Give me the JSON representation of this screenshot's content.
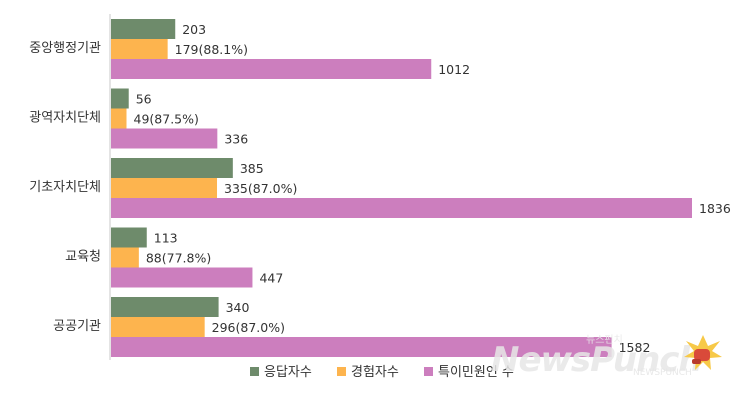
{
  "chart_data": {
    "type": "bar",
    "orientation": "horizontal",
    "categories": [
      "중앙행정기관",
      "광역자치단체",
      "기초자치단체",
      "교육청",
      "공공기관"
    ],
    "series": [
      {
        "name": "응답자수",
        "color": "#6e8b6b",
        "values": [
          203,
          56,
          385,
          113,
          340
        ],
        "labels": [
          "203",
          "56",
          "385",
          "113",
          "340"
        ]
      },
      {
        "name": "경험자수",
        "color": "#fdb44e",
        "values": [
          179,
          49,
          335,
          88,
          296
        ],
        "labels": [
          "179(88.1%)",
          "49(87.5%)",
          "335(87.0%)",
          "88(77.8%)",
          "296(87.0%)"
        ]
      },
      {
        "name": "특이민원인 수",
        "color": "#cc7ebe",
        "values": [
          1012,
          336,
          1836,
          447,
          1582
        ],
        "labels": [
          "1012",
          "336",
          "1836",
          "447",
          "1582"
        ]
      }
    ],
    "xlim": [
      0,
      1900
    ],
    "grid": false,
    "legend_position": "bottom"
  },
  "watermark": {
    "text": "NewsPunch",
    "sub_text": "뉴스펀치",
    "small_text": "NEWSPUNCH",
    "icon": "boxing-glove-icon"
  }
}
